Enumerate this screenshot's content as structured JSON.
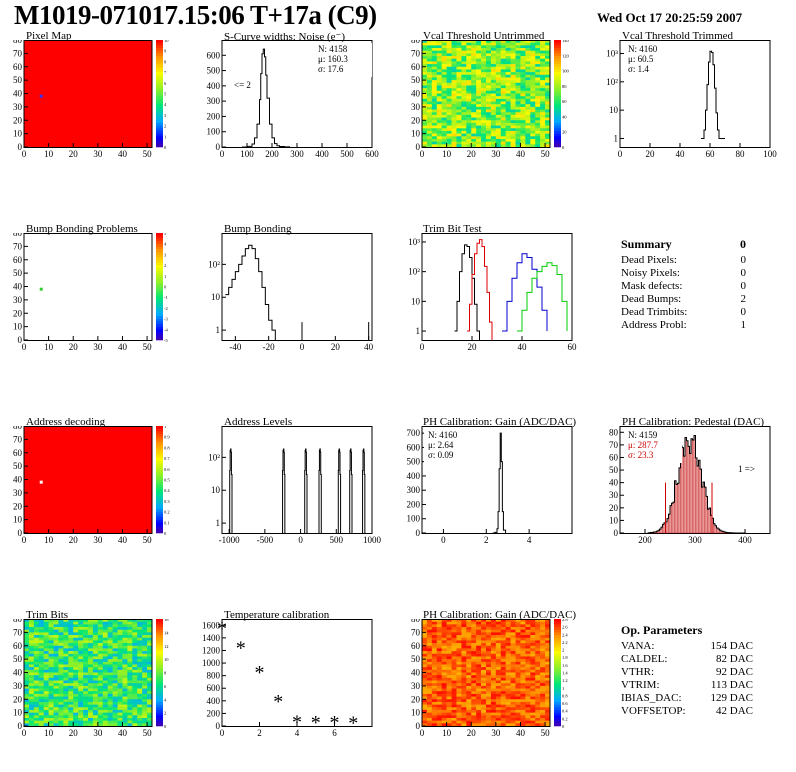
{
  "header": {
    "title": "M1019-071017.15:06 T+17a (C9)",
    "date": "Wed Oct 17 20:25:59 2007"
  },
  "colors": {
    "hot": "#ff0000",
    "line": "#000000",
    "red": "#dd0000",
    "blue": "#0000cc",
    "green": "#00cc00"
  },
  "panels": {
    "pixel_map": {
      "title": "Pixel Map",
      "xticks": [
        "0",
        "10",
        "20",
        "30",
        "40",
        "50"
      ],
      "yticks": [
        "0",
        "10",
        "20",
        "30",
        "40",
        "50",
        "60",
        "70",
        "80"
      ],
      "zticks": [
        "0",
        "1",
        "2",
        "3",
        "4",
        "5",
        "6",
        "7",
        "8",
        "9",
        "10"
      ]
    },
    "scurve": {
      "title": "S-Curve widths: Noise (e⁻)",
      "xticks": [
        "0",
        "100",
        "200",
        "300",
        "400",
        "500",
        "600"
      ],
      "yticks": [
        "0",
        "100",
        "200",
        "300",
        "400",
        "500",
        "600"
      ],
      "stats": {
        "n": "N: 4158",
        "mu": "μ: 160.3",
        "sigma": "σ: 17.6"
      },
      "note": "<= 2"
    },
    "vcal_untrimmed": {
      "title": "Vcal Threshold Untrimmed",
      "xticks": [
        "0",
        "10",
        "20",
        "30",
        "40",
        "50"
      ],
      "yticks": [
        "0",
        "10",
        "20",
        "30",
        "40",
        "50",
        "60",
        "70",
        "80"
      ],
      "zticks": [
        "0",
        "20",
        "40",
        "60",
        "80",
        "100",
        "120",
        "140"
      ]
    },
    "vcal_trimmed": {
      "title": "Vcal Threshold Trimmed",
      "xticks": [
        "0",
        "20",
        "40",
        "60",
        "80",
        "100"
      ],
      "yticks": [
        "1",
        "10",
        "10²",
        "10³"
      ],
      "stats": {
        "n": "N: 4160",
        "mu": "μ: 60.5",
        "sigma": "σ: 1.4"
      }
    },
    "bump_problems": {
      "title": "Bump Bonding Problems",
      "xticks": [
        "0",
        "10",
        "20",
        "30",
        "40",
        "50"
      ],
      "yticks": [
        "0",
        "10",
        "20",
        "30",
        "40",
        "50",
        "60",
        "70",
        "80"
      ],
      "zticks": [
        "-5",
        "-4",
        "-3",
        "-2",
        "-1",
        "0",
        "1",
        "2",
        "3",
        "4",
        "5"
      ]
    },
    "bump_bonding": {
      "title": "Bump Bonding",
      "xticks": [
        "-40",
        "-20",
        "0",
        "20",
        "40"
      ],
      "yticks": [
        "1",
        "10",
        "10²"
      ]
    },
    "trim_bit_test": {
      "title": "Trim Bit Test",
      "xticks": [
        "0",
        "20",
        "40",
        "60"
      ],
      "yticks": [
        "1",
        "10",
        "10²",
        "10³"
      ]
    },
    "address_decoding": {
      "title": "Address decoding",
      "xticks": [
        "0",
        "10",
        "20",
        "30",
        "40",
        "50"
      ],
      "yticks": [
        "0",
        "10",
        "20",
        "30",
        "40",
        "50",
        "60",
        "70",
        "80"
      ],
      "zticks": [
        "0",
        "0.1",
        "0.2",
        "0.3",
        "0.4",
        "0.5",
        "0.6",
        "0.7",
        "0.8",
        "0.9",
        "1"
      ]
    },
    "address_levels": {
      "title": "Address Levels",
      "xticks": [
        "-1000",
        "-500",
        "0",
        "500",
        "1000"
      ],
      "yticks": [
        "1",
        "10",
        "10²"
      ]
    },
    "ph_gain": {
      "title": "PH Calibration: Gain (ADC/DAC)",
      "xticks": [
        "0",
        "2",
        "4"
      ],
      "yticks": [
        "0",
        "100",
        "200",
        "300",
        "400",
        "500",
        "600",
        "700"
      ],
      "stats": {
        "n": "N: 4160",
        "mu": "μ: 2.64",
        "sigma": "σ: 0.09"
      }
    },
    "ph_pedestal": {
      "title": "PH Calibration: Pedestal (DAC)",
      "xticks": [
        "200",
        "300",
        "400"
      ],
      "yticks": [
        "0",
        "10",
        "20",
        "30",
        "40",
        "50",
        "60",
        "70",
        "80"
      ],
      "stats": {
        "n": "N: 4159",
        "mu": "μ: 287.7",
        "sigma": "σ: 23.3"
      },
      "note": "1 =>"
    },
    "trim_bits": {
      "title": "Trim Bits",
      "xticks": [
        "0",
        "10",
        "20",
        "30",
        "40",
        "50"
      ],
      "yticks": [
        "0",
        "10",
        "20",
        "30",
        "40",
        "50",
        "60",
        "70",
        "80"
      ],
      "zticks": [
        "0",
        "2",
        "4",
        "6",
        "8",
        "10",
        "12",
        "14",
        "16"
      ]
    },
    "temperature": {
      "title": "Temperature calibration",
      "xticks": [
        "0",
        "2",
        "4",
        "6"
      ],
      "yticks": [
        "0",
        "200",
        "400",
        "600",
        "800",
        "1000",
        "1200",
        "1400",
        "1600"
      ]
    },
    "ph_gain_map": {
      "title": "PH Calibration: Gain (ADC/DAC)",
      "xticks": [
        "0",
        "10",
        "20",
        "30",
        "40",
        "50"
      ],
      "yticks": [
        "0",
        "10",
        "20",
        "30",
        "40",
        "50",
        "60",
        "70",
        "80"
      ],
      "zticks": [
        "0",
        "0.2",
        "0.4",
        "0.6",
        "0.8",
        "1",
        "1.2",
        "1.4",
        "1.6",
        "1.8",
        "2",
        "2.2",
        "2.4",
        "2.6",
        "2.8"
      ]
    }
  },
  "summary": {
    "title": "Summary",
    "total": "0",
    "rows": [
      {
        "label": "Dead Pixels:",
        "value": "0"
      },
      {
        "label": "Noisy Pixels:",
        "value": "0"
      },
      {
        "label": "Mask defects:",
        "value": "0"
      },
      {
        "label": "Dead Bumps:",
        "value": "2"
      },
      {
        "label": "Dead Trimbits:",
        "value": "0"
      },
      {
        "label": "Address Probl:",
        "value": "1"
      }
    ]
  },
  "op_parameters": {
    "title": "Op. Parameters",
    "rows": [
      {
        "label": "VANA:",
        "value": "154 DAC"
      },
      {
        "label": "CALDEL:",
        "value": "82 DAC"
      },
      {
        "label": "VTHR:",
        "value": "92 DAC"
      },
      {
        "label": "VTRIM:",
        "value": "113 DAC"
      },
      {
        "label": "IBIAS_DAC:",
        "value": "129 DAC"
      },
      {
        "label": "VOFFSETOP:",
        "value": "42 DAC"
      }
    ]
  },
  "chart_data": [
    {
      "type": "heatmap",
      "name": "pixel_map",
      "xlim": [
        0,
        52
      ],
      "ylim": [
        0,
        80
      ],
      "fill": "uniform",
      "z": 10,
      "outliers": [
        {
          "x": 7,
          "y": 38,
          "z": 0
        }
      ]
    },
    {
      "type": "line",
      "name": "scurve",
      "xlim": [
        0,
        600
      ],
      "ylim": [
        0,
        700
      ],
      "x": [
        80,
        100,
        120,
        130,
        140,
        150,
        155,
        160,
        165,
        170,
        175,
        180,
        190,
        200,
        210,
        220,
        230,
        250,
        270
      ],
      "y": [
        0,
        4,
        20,
        60,
        150,
        310,
        480,
        610,
        640,
        590,
        470,
        320,
        150,
        60,
        22,
        8,
        3,
        1,
        0
      ]
    },
    {
      "type": "heatmap",
      "name": "vcal_untrimmed",
      "xlim": [
        0,
        52
      ],
      "ylim": [
        0,
        80
      ],
      "fill": "random",
      "zlim": [
        0,
        140
      ]
    },
    {
      "type": "line",
      "name": "vcal_trimmed",
      "log_y": true,
      "xlim": [
        0,
        100
      ],
      "ylim": [
        0.5,
        3000
      ],
      "x": [
        54,
        56,
        57,
        58,
        59,
        60,
        61,
        62,
        63,
        64,
        65,
        66,
        68,
        70
      ],
      "y": [
        1,
        2,
        10,
        80,
        500,
        1200,
        1100,
        400,
        60,
        8,
        2,
        1,
        1,
        1
      ]
    },
    {
      "type": "heatmap",
      "name": "bump_problems",
      "xlim": [
        0,
        52
      ],
      "ylim": [
        0,
        80
      ],
      "fill": "white",
      "outliers": [
        {
          "x": 7,
          "y": 38,
          "z": 2
        }
      ]
    },
    {
      "type": "line",
      "name": "bump_bonding",
      "log_y": true,
      "xlim": [
        -48,
        42
      ],
      "ylim": [
        0.5,
        900
      ],
      "x": [
        -46,
        -44,
        -42,
        -40,
        -38,
        -36,
        -34,
        -32,
        -30,
        -28,
        -26,
        -24,
        -22,
        -20,
        -18,
        -16
      ],
      "y": [
        12,
        20,
        35,
        60,
        100,
        180,
        300,
        380,
        300,
        150,
        60,
        20,
        6,
        2,
        1,
        0.5
      ],
      "extra": [
        {
          "x": 0,
          "y": 1
        },
        {
          "x": 40,
          "y": 1
        }
      ]
    },
    {
      "type": "line",
      "name": "trim_bit_test",
      "log_y": true,
      "xlim": [
        0,
        60
      ],
      "ylim": [
        0.5,
        2000
      ],
      "series": [
        {
          "color": "#000000",
          "x": [
            13,
            14,
            15,
            16,
            17,
            18,
            19,
            20,
            21,
            22,
            23
          ],
          "y": [
            1,
            10,
            100,
            400,
            800,
            700,
            300,
            60,
            8,
            1,
            0.5
          ]
        },
        {
          "color": "#dd0000",
          "x": [
            18,
            19,
            20,
            21,
            22,
            23,
            24,
            25,
            26,
            27,
            28
          ],
          "y": [
            1,
            8,
            80,
            400,
            900,
            1200,
            700,
            150,
            20,
            2,
            0.5
          ]
        },
        {
          "color": "#0000cc",
          "x": [
            32,
            34,
            36,
            38,
            40,
            42,
            44,
            46,
            48,
            50
          ],
          "y": [
            1,
            10,
            60,
            200,
            400,
            300,
            120,
            30,
            5,
            1
          ]
        },
        {
          "color": "#00cc00",
          "x": [
            38,
            40,
            42,
            44,
            46,
            48,
            50,
            52,
            54,
            56,
            58
          ],
          "y": [
            1,
            5,
            20,
            60,
            100,
            150,
            200,
            160,
            80,
            10,
            1
          ]
        }
      ]
    },
    {
      "type": "heatmap",
      "name": "address_decoding",
      "xlim": [
        0,
        52
      ],
      "ylim": [
        0,
        80
      ],
      "fill": "uniform",
      "z": 1,
      "outliers": [
        {
          "x": 7,
          "y": 38,
          "z": 0
        }
      ]
    },
    {
      "type": "line",
      "name": "address_levels",
      "log_y": true,
      "xlim": [
        -1100,
        1000
      ],
      "ylim": [
        0.5,
        900
      ],
      "peaks": [
        -980,
        -240,
        70,
        270,
        540,
        700,
        880
      ],
      "height": 180
    },
    {
      "type": "line",
      "name": "ph_gain",
      "xlim": [
        -1,
        6
      ],
      "ylim": [
        0,
        750
      ],
      "x": [
        2.3,
        2.4,
        2.5,
        2.55,
        2.6,
        2.65,
        2.7,
        2.75,
        2.8,
        2.9
      ],
      "y": [
        0,
        4,
        30,
        150,
        450,
        700,
        500,
        150,
        20,
        0
      ]
    },
    {
      "type": "bar",
      "name": "ph_pedestal",
      "xlim": [
        150,
        450
      ],
      "ylim": [
        0,
        85
      ],
      "mu": 287.7,
      "sigma": 23.3,
      "peak": 76,
      "cut_lines": [
        241,
        334
      ]
    },
    {
      "type": "heatmap",
      "name": "trim_bits",
      "xlim": [
        0,
        52
      ],
      "ylim": [
        0,
        80
      ],
      "fill": "random",
      "zlim": [
        0,
        16
      ]
    },
    {
      "type": "scatter",
      "name": "temperature",
      "xlim": [
        0,
        8
      ],
      "ylim": [
        0,
        1700
      ],
      "x": [
        0,
        1,
        2,
        3,
        4,
        5,
        6,
        7
      ],
      "y": [
        1560,
        1250,
        860,
        400,
        70,
        65,
        60,
        55
      ]
    },
    {
      "type": "heatmap",
      "name": "ph_gain_map",
      "xlim": [
        0,
        52
      ],
      "ylim": [
        0,
        80
      ],
      "fill": "random",
      "zlim": [
        0,
        2.8
      ]
    }
  ]
}
